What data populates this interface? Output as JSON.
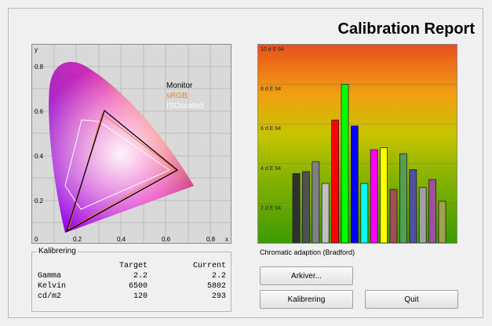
{
  "title": "Calibration Report",
  "cie": {
    "axis_x_labels": [
      "0",
      "0.2",
      "0.4",
      "0.6",
      "0.8"
    ],
    "axis_y_labels": [
      "0.2",
      "0.4",
      "0.6",
      "0.8"
    ],
    "x_axis_letter": "x",
    "y_axis_letter": "y",
    "legend": [
      {
        "label": "Monitor",
        "color": "#000000"
      },
      {
        "label": "sRGB",
        "color": "#f08020"
      },
      {
        "label": "ISOcoated",
        "color": "#ffffff"
      }
    ]
  },
  "chart_data": {
    "type": "bar",
    "title": "",
    "ylabel": "",
    "xlabel": "",
    "ylim": [
      0,
      10
    ],
    "y_tick_labels": [
      "2 d E 94",
      "4 d E 94",
      "6 d E 94",
      "8 d E 94",
      "10 d E 94"
    ],
    "values": [
      3.5,
      3.6,
      4.1,
      3.0,
      6.2,
      8.0,
      5.9,
      3.0,
      4.7,
      4.8,
      2.7,
      4.5,
      3.7,
      2.8,
      3.2,
      2.1
    ],
    "colors": [
      "#303030",
      "#505050",
      "#808080",
      "#c0c0c0",
      "#ff0000",
      "#00ff00",
      "#0000ff",
      "#00ffff",
      "#ff00ff",
      "#ffff00",
      "#a05050",
      "#50a050",
      "#5050a0",
      "#a0a0a0",
      "#a050a0",
      "#a0a050"
    ]
  },
  "chart_caption": "Chromatic adaption (Bradford)",
  "kalibrering": {
    "legend": "Kalibrering",
    "headers": [
      "",
      "Target",
      "Current"
    ],
    "rows": [
      [
        "Gamma",
        "2.2",
        "2.2"
      ],
      [
        "Kelvin",
        "6500",
        "5802"
      ],
      [
        "cd/m2",
        "120",
        "293"
      ]
    ]
  },
  "buttons": {
    "arkiver": "Arkiver...",
    "kalibrering": "Kalibrering",
    "quit": "Quit"
  }
}
